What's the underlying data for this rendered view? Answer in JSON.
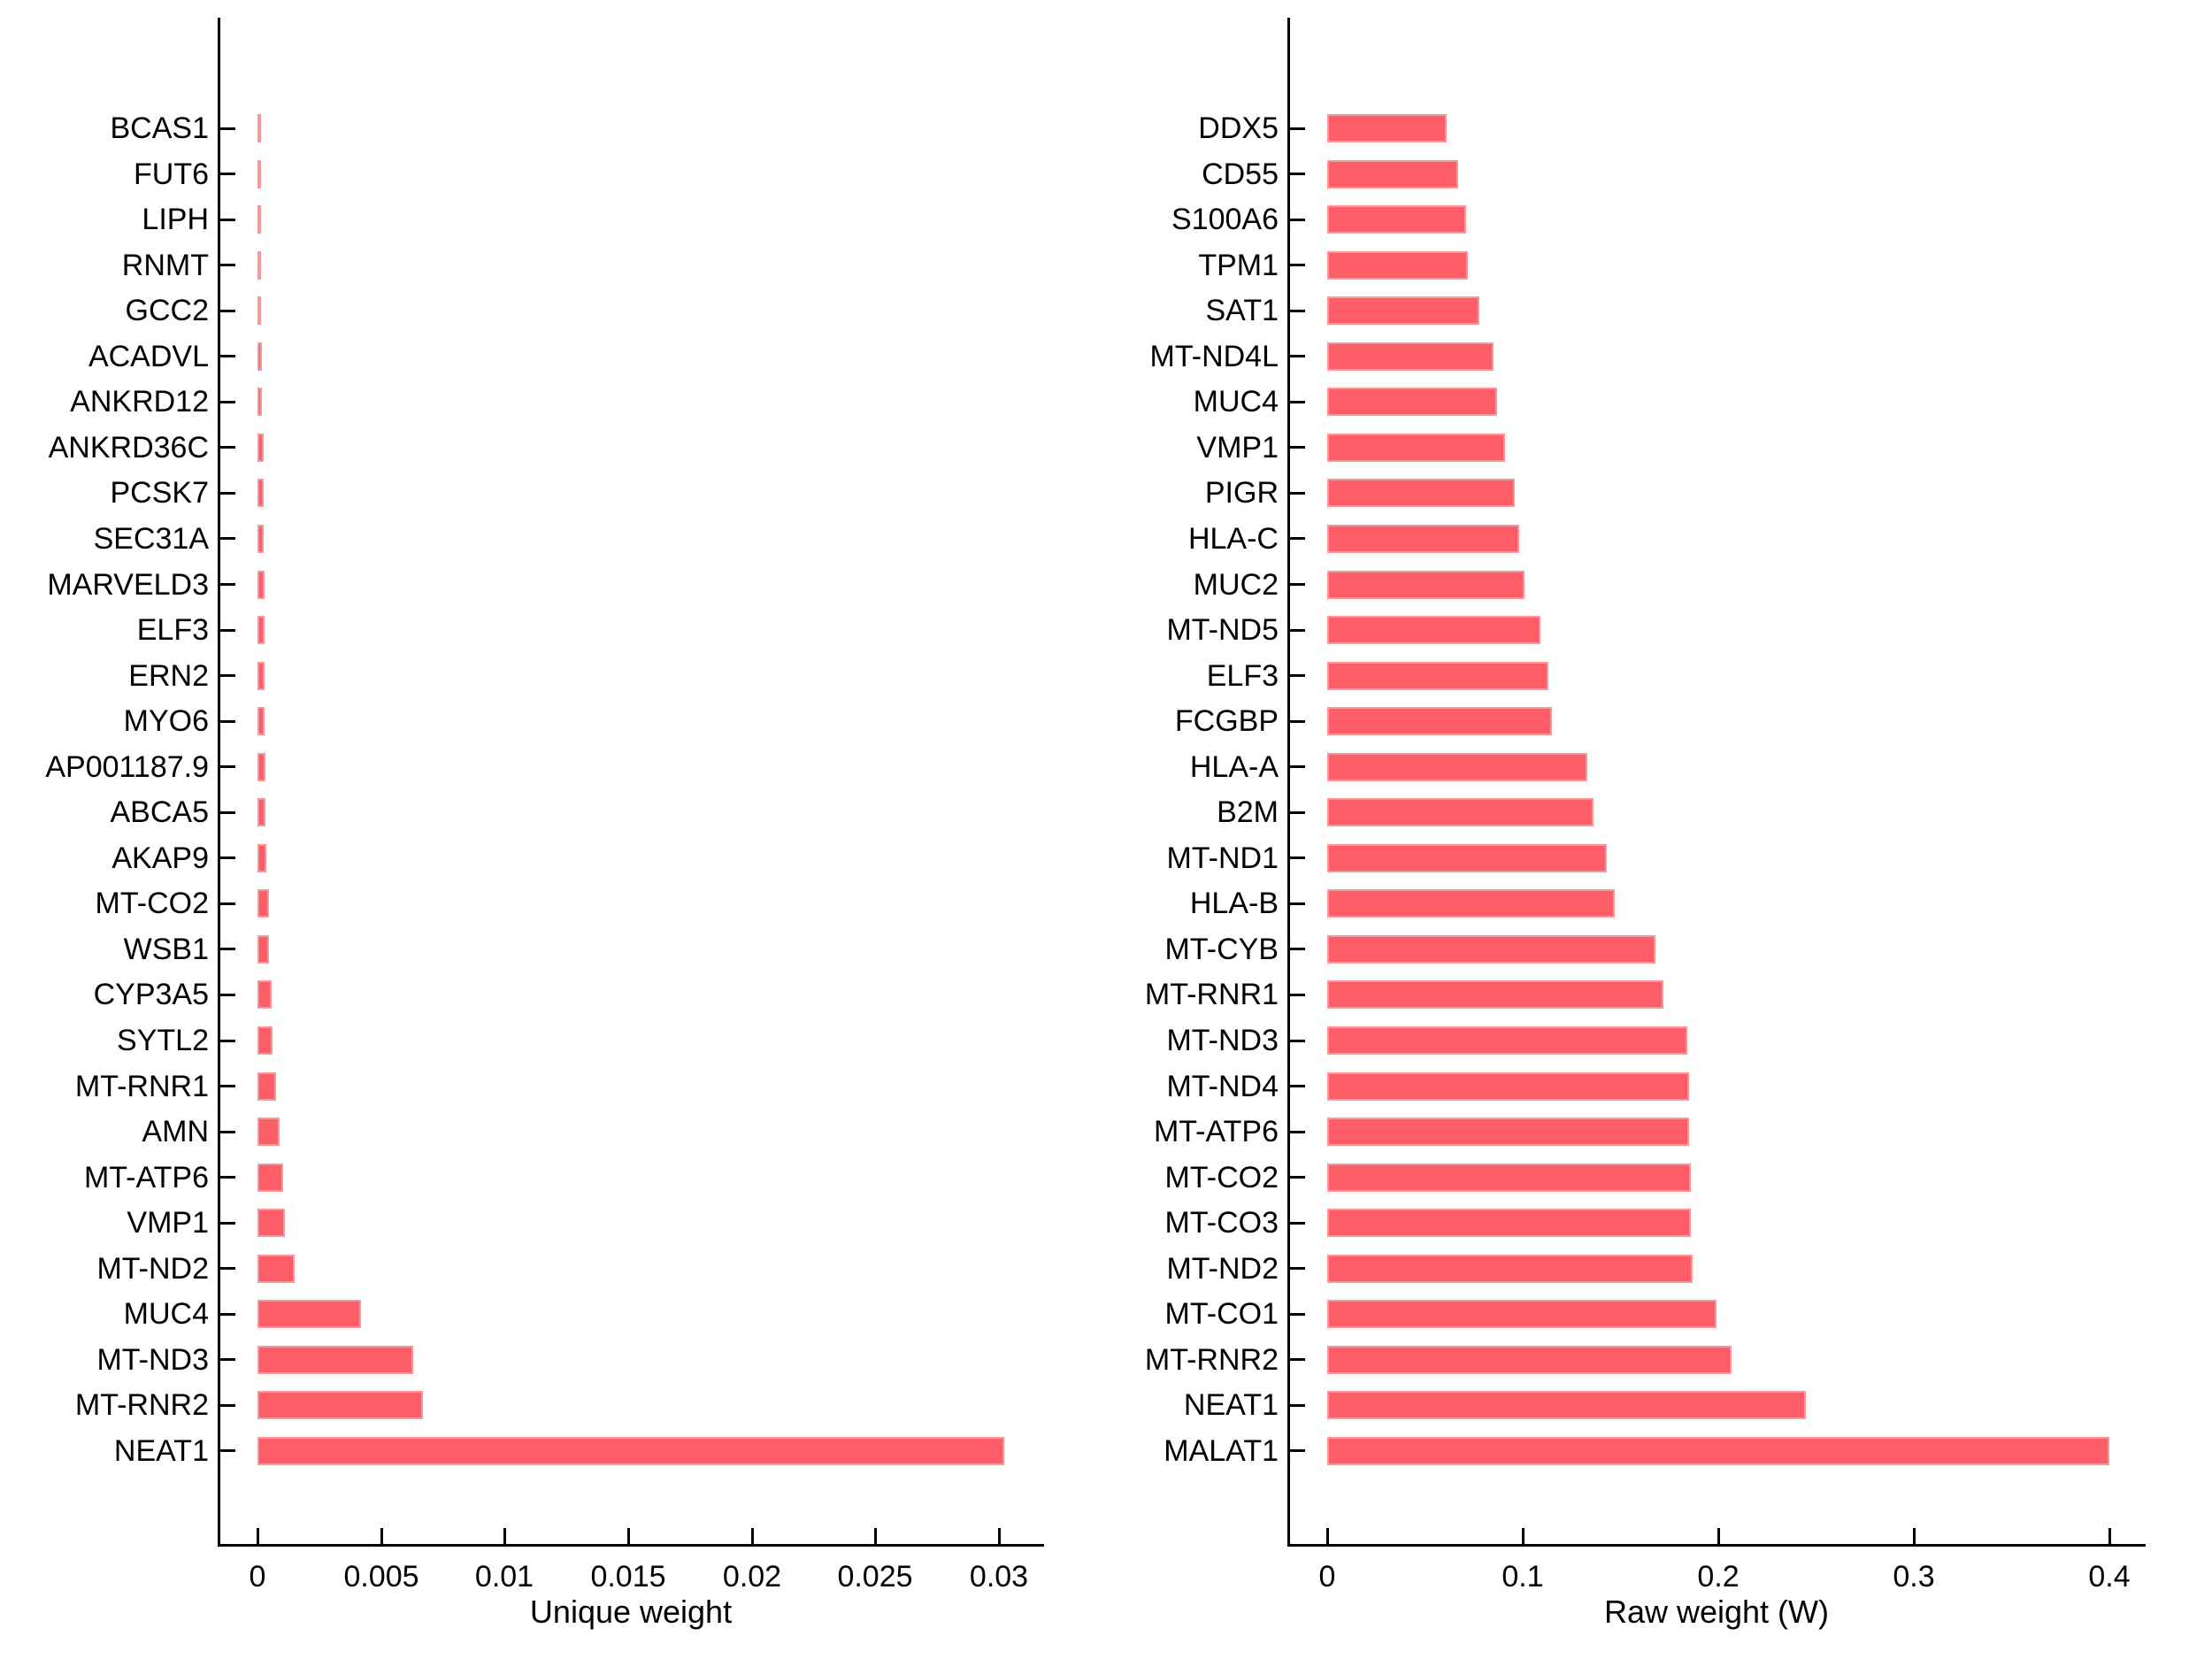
{
  "figure": {
    "background_color": "#ffffff",
    "text_color": "#000000",
    "bar_color": "#FC5D67"
  },
  "chart_data": [
    {
      "type": "bar",
      "orientation": "horizontal",
      "title": "",
      "xlabel": "Unique weight",
      "ylabel": "",
      "order": "top-to-bottom",
      "categories": [
        "BCAS1",
        "FUT6",
        "LIPH",
        "RNMT",
        "GCC2",
        "ACADVL",
        "ANKRD12",
        "ANKRD36C",
        "PCSK7",
        "SEC31A",
        "MARVELD3",
        "ELF3",
        "ERN2",
        "MYO6",
        "AP001187.9",
        "ABCA5",
        "AKAP9",
        "MT-CO2",
        "WSB1",
        "CYP3A5",
        "SYTL2",
        "MT-RNR1",
        "AMN",
        "MT-ATP6",
        "VMP1",
        "MT-ND2",
        "MUC4",
        "MT-ND3",
        "MT-RNR2",
        "NEAT1"
      ],
      "values": [
        0.00013,
        0.00013,
        0.00014,
        0.00015,
        0.00016,
        0.00017,
        0.00018,
        0.00024,
        0.00025,
        0.00026,
        0.00027,
        0.00028,
        0.00029,
        0.0003,
        0.00031,
        0.00032,
        0.00037,
        0.00045,
        0.00048,
        0.00057,
        0.0006,
        0.00075,
        0.0009,
        0.00105,
        0.0011,
        0.0015,
        0.0042,
        0.0063,
        0.0067,
        0.0302
      ],
      "x_ticks": [
        0,
        0.005,
        0.01,
        0.015,
        0.02,
        0.025,
        0.03
      ],
      "x_tick_labels": [
        "0",
        "0.005",
        "0.01",
        "0.015",
        "0.02",
        "0.025",
        "0.03"
      ],
      "xlim": [
        -0.0016,
        0.0318
      ],
      "grid": false,
      "legend": false,
      "bar_color": "#FC5D67"
    },
    {
      "type": "bar",
      "orientation": "horizontal",
      "title": "",
      "xlabel": "Raw weight (W)",
      "ylabel": "",
      "order": "top-to-bottom",
      "categories": [
        "DDX5",
        "CD55",
        "S100A6",
        "TPM1",
        "SAT1",
        "MT-ND4L",
        "MUC4",
        "VMP1",
        "PIGR",
        "HLA-C",
        "MUC2",
        "MT-ND5",
        "ELF3",
        "FCGBP",
        "HLA-A",
        "B2M",
        "MT-ND1",
        "HLA-B",
        "MT-CYB",
        "MT-RNR1",
        "MT-ND3",
        "MT-ND4",
        "MT-ATP6",
        "MT-CO2",
        "MT-CO3",
        "MT-ND2",
        "MT-CO1",
        "MT-RNR2",
        "NEAT1",
        "MALAT1"
      ],
      "values": [
        0.061,
        0.067,
        0.071,
        0.072,
        0.078,
        0.085,
        0.087,
        0.091,
        0.096,
        0.098,
        0.101,
        0.109,
        0.113,
        0.115,
        0.133,
        0.136,
        0.143,
        0.147,
        0.168,
        0.172,
        0.184,
        0.185,
        0.185,
        0.186,
        0.186,
        0.187,
        0.199,
        0.207,
        0.245,
        0.4
      ],
      "x_ticks": [
        0,
        0.1,
        0.2,
        0.3,
        0.4
      ],
      "x_tick_labels": [
        "0",
        "0.1",
        "0.2",
        "0.3",
        "0.4"
      ],
      "xlim": [
        -0.021,
        0.419
      ],
      "grid": false,
      "legend": false,
      "bar_color": "#FC5D67"
    }
  ]
}
